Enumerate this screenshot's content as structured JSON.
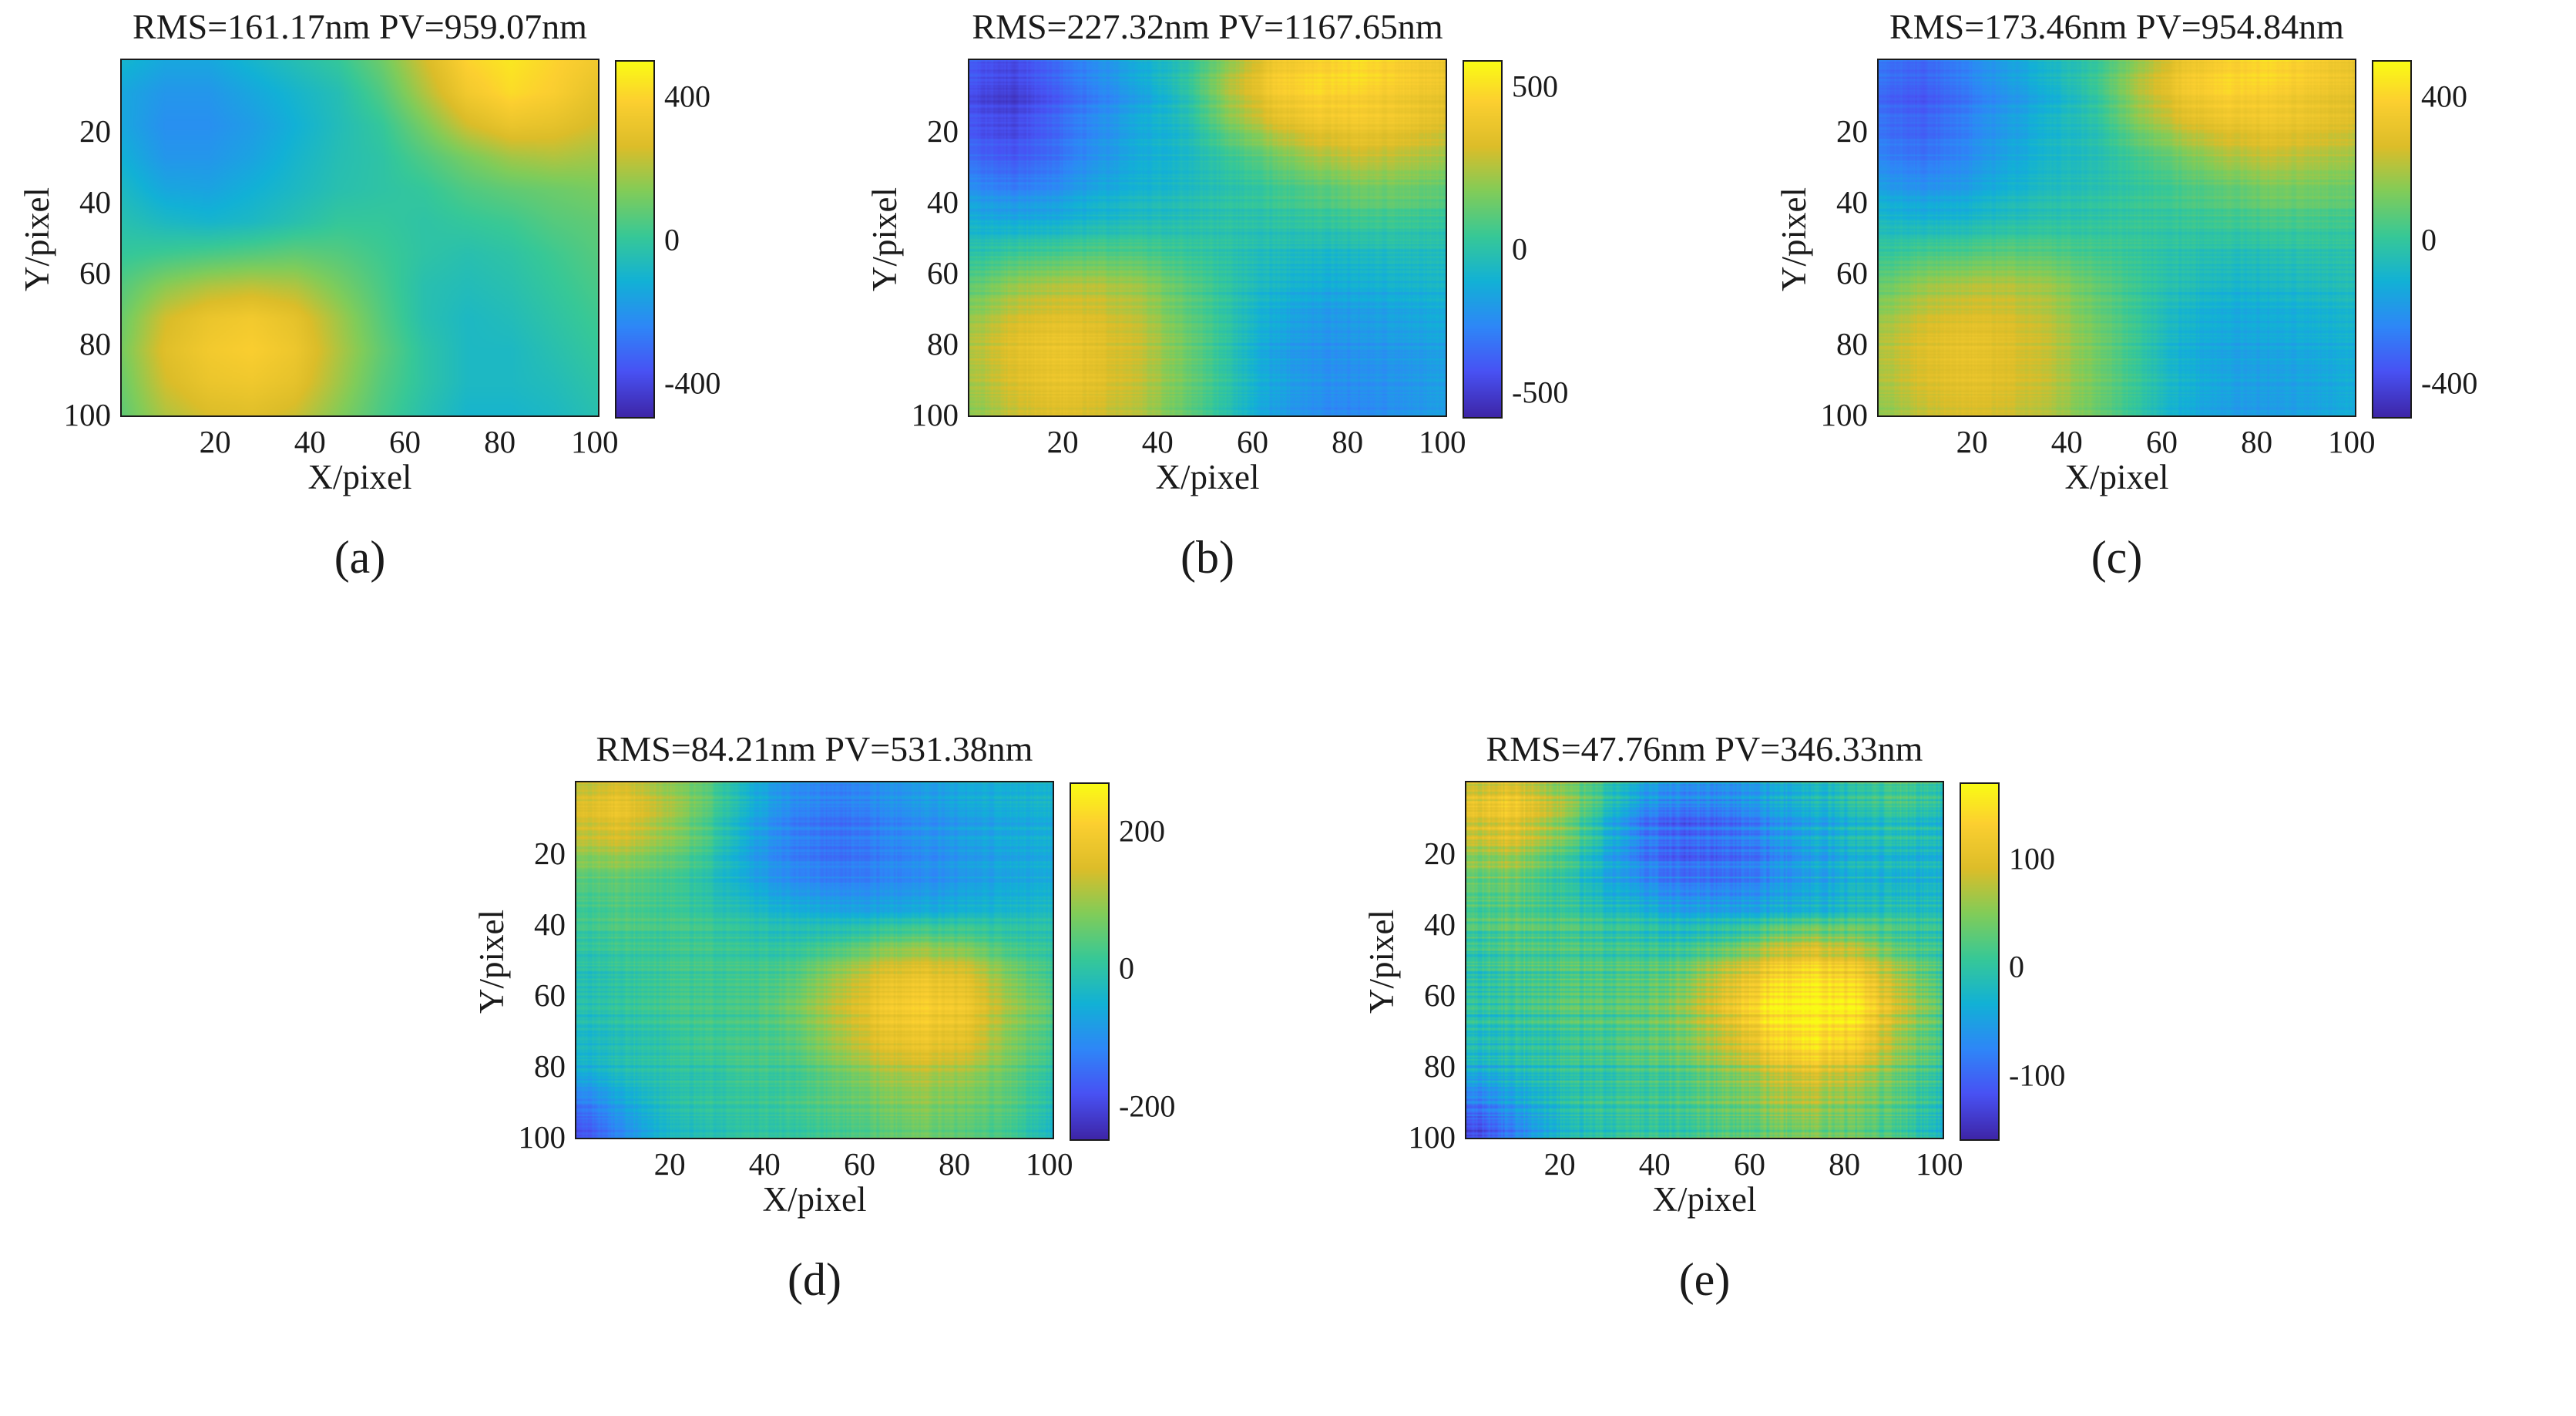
{
  "chart_data": [
    {
      "type": "heatmap",
      "title": "RMS=161.17nm PV=959.07nm",
      "caption": "(a)",
      "rms_nm": 161.17,
      "pv_nm": 959.07,
      "xlabel": "X/pixel",
      "ylabel": "Y/pixel",
      "x_range": [
        1,
        100
      ],
      "y_range": [
        1,
        100
      ],
      "x_tick_labels": [
        "20",
        "40",
        "60",
        "80",
        "100"
      ],
      "y_tick_labels": [
        "20",
        "40",
        "60",
        "80",
        "100"
      ],
      "colormap": "parula",
      "color_range": [
        -500,
        500
      ],
      "colorbar_tick_labels": [
        "400",
        "0",
        "-400"
      ],
      "colorbar_tick_values": [
        400,
        0,
        -400
      ],
      "stripe_noise": 0,
      "values": [
        [
          -100,
          -150,
          -150,
          -100,
          -50,
          0,
          100,
          250,
          400,
          450,
          400,
          350
        ],
        [
          -150,
          -200,
          -200,
          -150,
          -100,
          -50,
          50,
          200,
          350,
          420,
          380,
          300
        ],
        [
          -150,
          -220,
          -220,
          -180,
          -120,
          -60,
          0,
          120,
          250,
          320,
          300,
          250
        ],
        [
          -120,
          -200,
          -200,
          -160,
          -100,
          -50,
          -20,
          50,
          120,
          180,
          200,
          180
        ],
        [
          -80,
          -150,
          -160,
          -120,
          -80,
          -40,
          -20,
          0,
          50,
          80,
          100,
          120
        ],
        [
          -40,
          -80,
          -100,
          -80,
          -40,
          0,
          0,
          -20,
          0,
          20,
          60,
          80
        ],
        [
          0,
          20,
          40,
          60,
          80,
          60,
          20,
          -20,
          -40,
          -20,
          20,
          60
        ],
        [
          60,
          150,
          200,
          220,
          200,
          120,
          40,
          -40,
          -60,
          -40,
          0,
          40
        ],
        [
          100,
          250,
          320,
          350,
          300,
          180,
          60,
          -40,
          -80,
          -60,
          -20,
          20
        ],
        [
          120,
          280,
          350,
          380,
          330,
          200,
          80,
          -20,
          -80,
          -80,
          -40,
          0
        ],
        [
          100,
          250,
          320,
          340,
          300,
          180,
          60,
          -20,
          -80,
          -80,
          -60,
          -20
        ],
        [
          80,
          200,
          260,
          280,
          240,
          140,
          40,
          -40,
          -100,
          -100,
          -80,
          -40
        ]
      ]
    },
    {
      "type": "heatmap",
      "title": "RMS=227.32nm PV=1167.65nm",
      "caption": "(b)",
      "rms_nm": 227.32,
      "pv_nm": 1167.65,
      "xlabel": "X/pixel",
      "ylabel": "Y/pixel",
      "x_range": [
        1,
        100
      ],
      "y_range": [
        1,
        100
      ],
      "x_tick_labels": [
        "20",
        "40",
        "60",
        "80",
        "100"
      ],
      "y_tick_labels": [
        "20",
        "40",
        "60",
        "80",
        "100"
      ],
      "colormap": "parula",
      "color_range": [
        -520,
        580
      ],
      "colorbar_tick_labels": [
        "500",
        "0",
        "-500"
      ],
      "colorbar_tick_values": [
        500,
        0,
        -500
      ],
      "stripe_noise": 35,
      "values": [
        [
          -350,
          -400,
          -300,
          -200,
          -100,
          0,
          200,
          400,
          450,
          500,
          450,
          400
        ],
        [
          -400,
          -450,
          -350,
          -250,
          -150,
          0,
          250,
          420,
          480,
          460,
          420,
          380
        ],
        [
          -380,
          -420,
          -320,
          -220,
          -120,
          -50,
          150,
          300,
          380,
          400,
          380,
          320
        ],
        [
          -300,
          -350,
          -280,
          -180,
          -100,
          -50,
          50,
          150,
          250,
          300,
          280,
          240
        ],
        [
          -200,
          -250,
          -200,
          -120,
          -80,
          -40,
          0,
          50,
          100,
          150,
          150,
          120
        ],
        [
          -100,
          -120,
          -100,
          -60,
          -40,
          -20,
          0,
          0,
          20,
          40,
          40,
          20
        ],
        [
          0,
          50,
          80,
          100,
          80,
          40,
          0,
          -40,
          -60,
          -60,
          -40,
          -40
        ],
        [
          100,
          200,
          250,
          250,
          200,
          100,
          0,
          -80,
          -120,
          -120,
          -100,
          -80
        ],
        [
          200,
          300,
          350,
          320,
          250,
          120,
          0,
          -120,
          -180,
          -180,
          -150,
          -120
        ],
        [
          250,
          350,
          400,
          350,
          280,
          150,
          0,
          -150,
          -200,
          -200,
          -180,
          -150
        ],
        [
          220,
          320,
          380,
          340,
          260,
          140,
          0,
          -140,
          -200,
          -220,
          -200,
          -160
        ],
        [
          180,
          280,
          340,
          300,
          240,
          120,
          -20,
          -160,
          -220,
          -240,
          -200,
          -160
        ]
      ]
    },
    {
      "type": "heatmap",
      "title": "RMS=173.46nm PV=954.84nm",
      "caption": "(c)",
      "rms_nm": 173.46,
      "pv_nm": 954.84,
      "xlabel": "X/pixel",
      "ylabel": "Y/pixel",
      "x_range": [
        1,
        100
      ],
      "y_range": [
        1,
        100
      ],
      "x_tick_labels": [
        "20",
        "40",
        "60",
        "80",
        "100"
      ],
      "y_tick_labels": [
        "20",
        "40",
        "60",
        "80",
        "100"
      ],
      "colormap": "parula",
      "color_range": [
        -500,
        500
      ],
      "colorbar_tick_labels": [
        "400",
        "0",
        "-400"
      ],
      "colorbar_tick_values": [
        400,
        0,
        -400
      ],
      "stripe_noise": 30,
      "values": [
        [
          -280,
          -320,
          -240,
          -160,
          -80,
          0,
          160,
          320,
          380,
          420,
          380,
          320
        ],
        [
          -320,
          -360,
          -280,
          -200,
          -120,
          0,
          200,
          340,
          400,
          380,
          340,
          300
        ],
        [
          -300,
          -340,
          -260,
          -180,
          -100,
          -40,
          120,
          240,
          300,
          320,
          300,
          260
        ],
        [
          -240,
          -280,
          -220,
          -140,
          -80,
          -40,
          40,
          120,
          200,
          240,
          220,
          190
        ],
        [
          -160,
          -200,
          -160,
          -100,
          -60,
          -30,
          0,
          40,
          80,
          120,
          120,
          100
        ],
        [
          -80,
          -100,
          -80,
          -50,
          -30,
          -15,
          0,
          0,
          15,
          30,
          30,
          15
        ],
        [
          0,
          40,
          60,
          80,
          60,
          30,
          0,
          -30,
          -50,
          -50,
          -30,
          -30
        ],
        [
          80,
          160,
          200,
          200,
          160,
          80,
          0,
          -60,
          -100,
          -100,
          -80,
          -60
        ],
        [
          160,
          240,
          280,
          260,
          200,
          100,
          0,
          -100,
          -140,
          -140,
          -120,
          -100
        ],
        [
          200,
          280,
          320,
          280,
          220,
          120,
          0,
          -120,
          -160,
          -160,
          -140,
          -120
        ],
        [
          180,
          260,
          300,
          270,
          210,
          110,
          0,
          -110,
          -160,
          -180,
          -160,
          -130
        ],
        [
          140,
          220,
          270,
          240,
          190,
          100,
          -15,
          -130,
          -180,
          -190,
          -160,
          -130
        ]
      ]
    },
    {
      "type": "heatmap",
      "title": "RMS=84.21nm PV=531.38nm",
      "caption": "(d)",
      "rms_nm": 84.21,
      "pv_nm": 531.38,
      "xlabel": "X/pixel",
      "ylabel": "Y/pixel",
      "x_range": [
        1,
        100
      ],
      "y_range": [
        1,
        100
      ],
      "x_tick_labels": [
        "20",
        "40",
        "60",
        "80",
        "100"
      ],
      "y_tick_labels": [
        "20",
        "40",
        "60",
        "80",
        "100"
      ],
      "colormap": "parula",
      "color_range": [
        -250,
        270
      ],
      "colorbar_tick_labels": [
        "200",
        "0",
        "-200"
      ],
      "colorbar_tick_values": [
        200,
        0,
        -200
      ],
      "stripe_noise": 22,
      "values": [
        [
          120,
          150,
          100,
          50,
          -50,
          -100,
          -120,
          -100,
          -80,
          -60,
          -50,
          -40
        ],
        [
          150,
          180,
          120,
          40,
          -60,
          -120,
          -140,
          -120,
          -100,
          -80,
          -60,
          -50
        ],
        [
          100,
          120,
          80,
          20,
          -80,
          -130,
          -150,
          -130,
          -110,
          -90,
          -70,
          -60
        ],
        [
          50,
          60,
          40,
          0,
          -60,
          -100,
          -120,
          -110,
          -100,
          -80,
          -60,
          -50
        ],
        [
          20,
          40,
          30,
          10,
          -20,
          -40,
          -60,
          -60,
          -50,
          -40,
          -30,
          -20
        ],
        [
          0,
          20,
          20,
          20,
          0,
          0,
          20,
          60,
          80,
          60,
          20,
          0
        ],
        [
          -20,
          0,
          20,
          20,
          20,
          40,
          100,
          160,
          180,
          160,
          80,
          20
        ],
        [
          -20,
          0,
          20,
          20,
          20,
          60,
          120,
          180,
          200,
          180,
          100,
          40
        ],
        [
          -40,
          -20,
          0,
          20,
          20,
          40,
          100,
          160,
          180,
          160,
          80,
          20
        ],
        [
          -60,
          -20,
          0,
          0,
          20,
          20,
          60,
          100,
          120,
          100,
          60,
          0
        ],
        [
          -150,
          -80,
          -20,
          0,
          0,
          20,
          40,
          60,
          80,
          60,
          40,
          -20
        ],
        [
          -200,
          -120,
          -40,
          -20,
          0,
          0,
          20,
          40,
          60,
          40,
          20,
          -40
        ]
      ]
    },
    {
      "type": "heatmap",
      "title": "RMS=47.76nm PV=346.33nm",
      "caption": "(e)",
      "rms_nm": 47.76,
      "pv_nm": 346.33,
      "xlabel": "X/pixel",
      "ylabel": "Y/pixel",
      "x_range": [
        1,
        100
      ],
      "y_range": [
        1,
        100
      ],
      "x_tick_labels": [
        "20",
        "40",
        "60",
        "80",
        "100"
      ],
      "y_tick_labels": [
        "20",
        "40",
        "60",
        "80",
        "100"
      ],
      "colormap": "parula",
      "color_range": [
        -160,
        170
      ],
      "colorbar_tick_labels": [
        "100",
        "0",
        "-100"
      ],
      "colorbar_tick_values": [
        100,
        0,
        -100
      ],
      "stripe_noise": 25,
      "values": [
        [
          80,
          100,
          60,
          20,
          -40,
          -60,
          -60,
          -40,
          -20,
          0,
          20,
          0
        ],
        [
          100,
          120,
          80,
          0,
          -80,
          -100,
          -90,
          -60,
          -40,
          -20,
          0,
          -20
        ],
        [
          60,
          80,
          40,
          -20,
          -90,
          -110,
          -100,
          -80,
          -50,
          -30,
          -20,
          -30
        ],
        [
          40,
          50,
          20,
          -20,
          -60,
          -80,
          -80,
          -60,
          -40,
          -20,
          -20,
          -20
        ],
        [
          20,
          30,
          20,
          0,
          -20,
          -40,
          -40,
          -30,
          -20,
          -10,
          0,
          -10
        ],
        [
          0,
          20,
          20,
          10,
          0,
          0,
          20,
          60,
          80,
          60,
          20,
          0
        ],
        [
          -10,
          10,
          20,
          20,
          20,
          40,
          90,
          130,
          150,
          130,
          70,
          10
        ],
        [
          -10,
          0,
          20,
          20,
          20,
          50,
          100,
          150,
          160,
          150,
          80,
          20
        ],
        [
          -20,
          -10,
          0,
          10,
          20,
          40,
          80,
          130,
          150,
          130,
          60,
          10
        ],
        [
          -40,
          -20,
          0,
          0,
          10,
          20,
          50,
          80,
          100,
          80,
          40,
          0
        ],
        [
          -100,
          -60,
          -20,
          0,
          0,
          10,
          30,
          50,
          60,
          40,
          20,
          -20
        ],
        [
          -140,
          -90,
          -30,
          -10,
          0,
          0,
          20,
          30,
          40,
          30,
          10,
          -30
        ]
      ]
    }
  ]
}
